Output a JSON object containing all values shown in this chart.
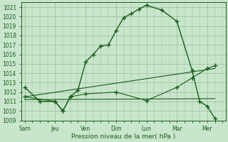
{
  "bg_color": "#c8e6cc",
  "plot_bg_color": "#c8e6cc",
  "outer_bg": "#c8e6cc",
  "grid_color": "#99bb99",
  "line_color": "#1a5c1a",
  "xlabel": "Pression niveau de la mer( hPa )",
  "ylim": [
    1009,
    1021.5
  ],
  "yticks": [
    1009,
    1010,
    1011,
    1012,
    1013,
    1014,
    1015,
    1016,
    1017,
    1018,
    1019,
    1020,
    1021
  ],
  "day_labels": [
    "Sam",
    "Jeu",
    "Ven",
    "Dim",
    "Lun",
    "Mar",
    "Mer"
  ],
  "day_positions": [
    0,
    2,
    4,
    6,
    8,
    10,
    12
  ],
  "xlim": [
    -0.2,
    13.2
  ],
  "series1_x": [
    0,
    1,
    2,
    2.5,
    3,
    3.5,
    4.0,
    4.5,
    5.0,
    5.5,
    6.0,
    6.5,
    7.0,
    7.5,
    8.0,
    9.0,
    10.0,
    11.0,
    11.5,
    12.0,
    12.5
  ],
  "series1_y": [
    1012.5,
    1011.0,
    1011.0,
    1010.0,
    1011.5,
    1012.2,
    1015.2,
    1016.0,
    1016.9,
    1017.0,
    1018.5,
    1019.9,
    1020.3,
    1020.8,
    1021.2,
    1020.7,
    1019.5,
    1014.3,
    1011.0,
    1010.5,
    1009.2
  ],
  "series2_x": [
    0.0,
    12.5
  ],
  "series2_y": [
    1011.5,
    1014.5
  ],
  "series3_x": [
    0.0,
    12.5
  ],
  "series3_y": [
    1011.2,
    1011.3
  ],
  "series4_x": [
    0,
    2,
    2.5,
    3,
    4,
    6,
    8,
    10,
    11,
    12,
    12.5
  ],
  "series4_y": [
    1011.5,
    1011.0,
    1010.0,
    1011.5,
    1011.8,
    1012.0,
    1011.1,
    1012.5,
    1013.5,
    1014.5,
    1014.8
  ]
}
